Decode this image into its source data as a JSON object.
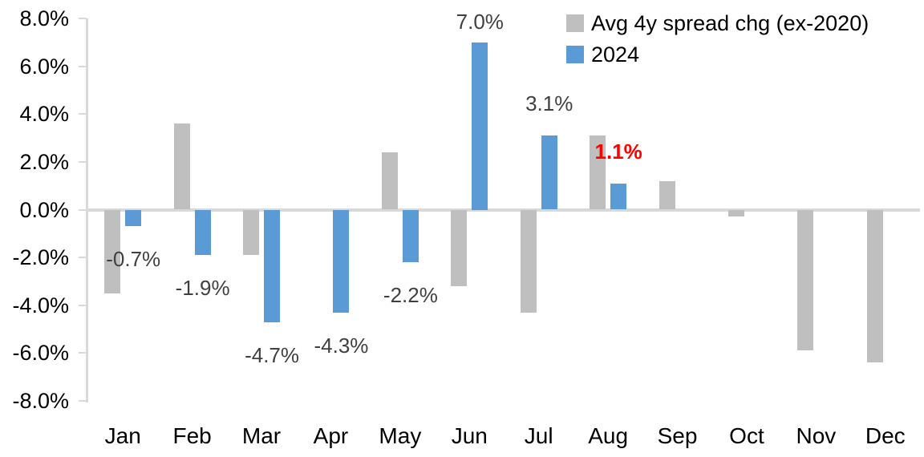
{
  "chart_data": {
    "type": "bar",
    "title": "",
    "categories": [
      "Jan",
      "Feb",
      "Mar",
      "Apr",
      "May",
      "Jun",
      "Jul",
      "Aug",
      "Sep",
      "Oct",
      "Nov",
      "Dec"
    ],
    "series": [
      {
        "name": "Avg 4y spread chg (ex-2020)",
        "color": "#bfbfbf",
        "values": [
          -3.5,
          3.6,
          -1.9,
          0.0,
          2.4,
          -3.2,
          -4.3,
          3.1,
          1.2,
          -0.3,
          -5.9,
          -6.4
        ]
      },
      {
        "name": "2024",
        "color": "#5b9bd5",
        "values": [
          -0.7,
          -1.9,
          -4.7,
          -4.3,
          -2.2,
          7.0,
          3.1,
          1.1,
          null,
          null,
          null,
          null
        ],
        "point_labels": [
          {
            "text": "-0.7%",
            "color": "#404040",
            "bold": false
          },
          {
            "text": "-1.9%",
            "color": "#404040",
            "bold": false
          },
          {
            "text": "-4.7%",
            "color": "#404040",
            "bold": false
          },
          {
            "text": "-4.3%",
            "color": "#404040",
            "bold": false
          },
          {
            "text": "-2.2%",
            "color": "#404040",
            "bold": false
          },
          {
            "text": "7.0%",
            "color": "#404040",
            "bold": false
          },
          {
            "text": "3.1%",
            "color": "#404040",
            "bold": false
          },
          {
            "text": "1.1%",
            "color": "#ff0000",
            "bold": true
          },
          null,
          null,
          null,
          null
        ]
      }
    ],
    "y_axis": {
      "min": -8,
      "max": 8,
      "step": 2,
      "tick_labels": [
        "8.0%",
        "6.0%",
        "4.0%",
        "2.0%",
        "0.0%",
        "-2.0%",
        "-4.0%",
        "-6.0%",
        "-8.0%"
      ]
    },
    "xlabel": "",
    "ylabel": "",
    "grid": false,
    "legend_position": "top-right",
    "colors": {
      "axis": "#d9d9d9",
      "tick_text": "#000000",
      "data_label": "#404040",
      "highlight": "#ff0000"
    }
  }
}
